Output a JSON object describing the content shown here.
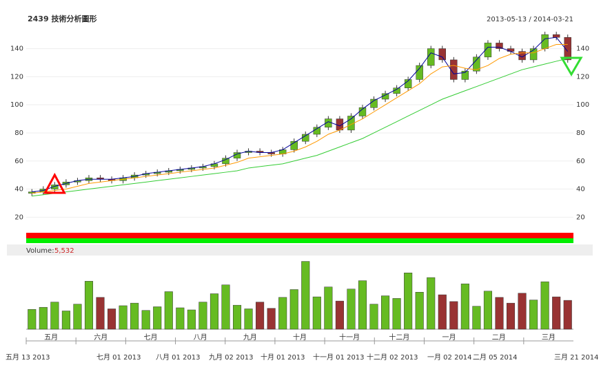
{
  "chart_data": {
    "type": "candlestick",
    "title": "2439 技術分析圖形",
    "date_range": "2013-05-13 / 2014-03-21",
    "ylim": [
      3,
      155
    ],
    "yticks": [
      20,
      40,
      60,
      80,
      100,
      120,
      140
    ],
    "grid": true,
    "up_color": "#66bb22",
    "down_color": "#993333",
    "ohlc": [
      [
        37,
        40,
        35,
        38
      ],
      [
        38,
        42,
        36,
        40
      ],
      [
        40,
        45,
        38,
        43
      ],
      [
        43,
        47,
        41,
        45
      ],
      [
        45,
        48,
        43,
        46
      ],
      [
        46,
        50,
        44,
        48
      ],
      [
        48,
        50,
        45,
        47
      ],
      [
        47,
        49,
        44,
        46
      ],
      [
        46,
        50,
        44,
        48
      ],
      [
        48,
        52,
        46,
        50
      ],
      [
        50,
        53,
        48,
        51
      ],
      [
        51,
        54,
        49,
        52
      ],
      [
        52,
        55,
        50,
        53
      ],
      [
        53,
        56,
        51,
        54
      ],
      [
        54,
        57,
        52,
        55
      ],
      [
        55,
        58,
        53,
        56
      ],
      [
        56,
        60,
        54,
        58
      ],
      [
        58,
        64,
        56,
        62
      ],
      [
        62,
        68,
        60,
        66
      ],
      [
        66,
        69,
        64,
        67
      ],
      [
        67,
        69,
        64,
        66
      ],
      [
        66,
        68,
        63,
        65
      ],
      [
        65,
        70,
        63,
        68
      ],
      [
        68,
        76,
        66,
        74
      ],
      [
        74,
        81,
        72,
        79
      ],
      [
        79,
        86,
        77,
        84
      ],
      [
        84,
        92,
        82,
        90
      ],
      [
        90,
        92,
        80,
        82
      ],
      [
        82,
        94,
        80,
        92
      ],
      [
        92,
        100,
        90,
        98
      ],
      [
        98,
        106,
        96,
        104
      ],
      [
        104,
        110,
        102,
        108
      ],
      [
        108,
        114,
        106,
        112
      ],
      [
        112,
        120,
        110,
        118
      ],
      [
        118,
        130,
        116,
        128
      ],
      [
        128,
        142,
        126,
        140
      ],
      [
        140,
        142,
        130,
        132
      ],
      [
        132,
        134,
        116,
        118
      ],
      [
        118,
        126,
        116,
        124
      ],
      [
        124,
        136,
        122,
        134
      ],
      [
        134,
        146,
        132,
        144
      ],
      [
        144,
        146,
        138,
        140
      ],
      [
        140,
        142,
        136,
        138
      ],
      [
        138,
        140,
        130,
        132
      ],
      [
        132,
        142,
        130,
        140
      ],
      [
        140,
        152,
        138,
        150
      ],
      [
        150,
        152,
        146,
        148
      ],
      [
        148,
        150,
        130,
        132
      ]
    ],
    "volume_label": "Volume:",
    "volume_last": "5,532",
    "vlim": [
      0,
      14000
    ],
    "volume": [
      3800,
      4200,
      5200,
      3500,
      4800,
      9200,
      6100,
      3900,
      4500,
      5000,
      3600,
      4300,
      7200,
      4100,
      3700,
      5200,
      6800,
      8500,
      4600,
      3900,
      5200,
      4000,
      6100,
      7600,
      13000,
      6200,
      8100,
      5400,
      7700,
      9300,
      4800,
      6400,
      5900,
      10800,
      7100,
      9900,
      6600,
      5300,
      8700,
      4400,
      7300,
      6100,
      5000,
      6900,
      5600,
      9100,
      6200,
      5532
    ],
    "lines": [
      {
        "name": "MA5",
        "color": "#000099",
        "values": [
          38,
          39,
          42,
          44,
          46,
          47,
          47,
          47,
          48,
          49,
          51,
          52,
          53,
          54,
          55,
          56,
          58,
          61,
          65,
          67,
          66,
          66,
          68,
          73,
          78,
          83,
          88,
          85,
          90,
          97,
          103,
          107,
          111,
          117,
          126,
          137,
          134,
          122,
          123,
          132,
          141,
          141,
          138,
          134,
          139,
          147,
          148,
          138
        ]
      },
      {
        "name": "MA20",
        "color": "#ff9900",
        "values": [
          37,
          38,
          39,
          40,
          42,
          44,
          45,
          46,
          47,
          48,
          49,
          50,
          51,
          52,
          53,
          54,
          55,
          57,
          59,
          62,
          63,
          64,
          65,
          67,
          70,
          74,
          79,
          82,
          86,
          90,
          95,
          100,
          105,
          110,
          115,
          122,
          127,
          128,
          126,
          125,
          128,
          133,
          136,
          137,
          137,
          140,
          143,
          143
        ]
      },
      {
        "name": "MA60",
        "color": "#33cc33",
        "values": [
          35,
          36,
          37,
          38,
          39,
          40,
          41,
          42,
          43,
          44,
          45,
          46,
          47,
          48,
          49,
          50,
          51,
          52,
          53,
          55,
          56,
          57,
          58,
          60,
          62,
          64,
          67,
          70,
          73,
          76,
          80,
          84,
          88,
          92,
          96,
          100,
          104,
          107,
          110,
          113,
          116,
          119,
          122,
          125,
          127,
          129,
          131,
          133
        ]
      }
    ],
    "months": [
      "五月",
      "六月",
      "七月",
      "八月",
      "九月",
      "十月",
      "十一月",
      "十二月",
      "一月",
      "二月",
      "三月"
    ],
    "dates": [
      "五月 13 2013",
      "七月 01 2013",
      "八月 01 2013",
      "九月 02 2013",
      "十月 01 2013",
      "十一月 01 2013",
      "十二月 02 2013",
      "一月 02 2014",
      "二月 05 2014",
      "三月 21 2014"
    ]
  }
}
